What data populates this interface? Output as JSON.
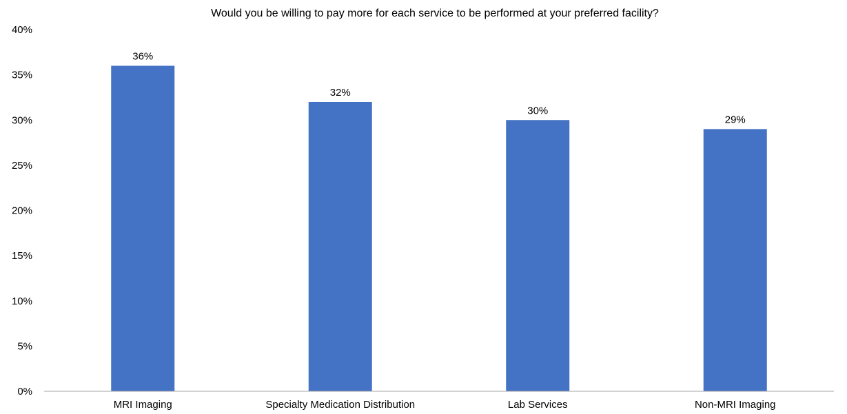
{
  "chart_data": {
    "type": "bar",
    "title": "Would you be willing to pay more for each service to be performed at your preferred facility?",
    "categories": [
      "MRI Imaging",
      "Specialty Medication Distribution",
      "Lab Services",
      "Non-MRI Imaging"
    ],
    "values": [
      36,
      32,
      30,
      29
    ],
    "value_labels": [
      "36%",
      "32%",
      "30%",
      "29%"
    ],
    "ylim": [
      0,
      40
    ],
    "yticks": [
      0,
      5,
      10,
      15,
      20,
      25,
      30,
      35,
      40
    ],
    "ytick_labels": [
      "0%",
      "5%",
      "10%",
      "15%",
      "20%",
      "25%",
      "30%",
      "35%",
      "40%"
    ],
    "xlabel": "",
    "ylabel": "",
    "grid": false,
    "legend": "none",
    "bar_color": "#4472C4"
  }
}
